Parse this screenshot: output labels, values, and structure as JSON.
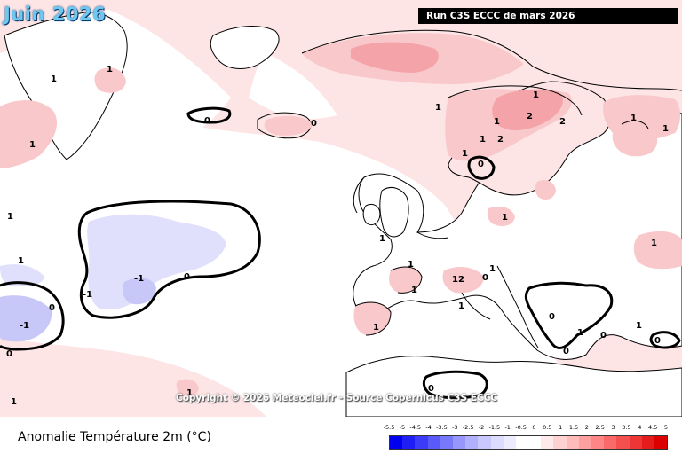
{
  "title": "Juin 2026",
  "run_label": "Run C3S ECCC de mars 2026",
  "copyright": "Copyright © 2026 Meteociel.fr - Source Copernicus C3S ECCC",
  "variable_label": "Anomalie Température 2m (°C)",
  "legend": {
    "labels": [
      "-5.5",
      "-5",
      "-4.5",
      "-4",
      "-3.5",
      "-3",
      "-2.5",
      "-2",
      "-1.5",
      "-1",
      "-0.5",
      "0",
      "0.5",
      "1",
      "1.5",
      "2",
      "2.5",
      "3",
      "3.5",
      "4",
      "4.5",
      "5"
    ],
    "colors": [
      "#0000ee",
      "#1e1ef5",
      "#3c3cf8",
      "#5a5afa",
      "#7878fb",
      "#9696fc",
      "#b0b0fd",
      "#c8c8fe",
      "#dcdcfe",
      "#ececfe",
      "#ffffff",
      "#ffffff",
      "#ffeaea",
      "#ffd2d2",
      "#ffbaba",
      "#ffa0a0",
      "#ff8686",
      "#fb6a6a",
      "#f55050",
      "#ef3636",
      "#e51c1c",
      "#dc0000"
    ]
  },
  "contour_labels": [
    "1",
    "1",
    "0",
    "1",
    "0",
    "1",
    "1",
    "1",
    "1",
    "2",
    "2",
    "1",
    "2",
    "1",
    "1",
    "0",
    "1",
    "1",
    "1",
    "1",
    "1",
    "2",
    "0",
    "1",
    "1",
    "1",
    "0",
    "1",
    "0",
    "1",
    "0",
    "0",
    "0",
    "1",
    "1",
    "0",
    "-1",
    "-1",
    "-1",
    "0",
    "0",
    "1",
    "1",
    "1"
  ],
  "colors": {
    "land": "#ffffff",
    "sea_neutral": "#ffffff",
    "warm_light": "#fde4e5",
    "warm_medium": "#f9c8cb",
    "warm_strong": "#f4a4a8",
    "cold_light": "#e0e0fc",
    "cold_medium": "#c8c8f8"
  }
}
